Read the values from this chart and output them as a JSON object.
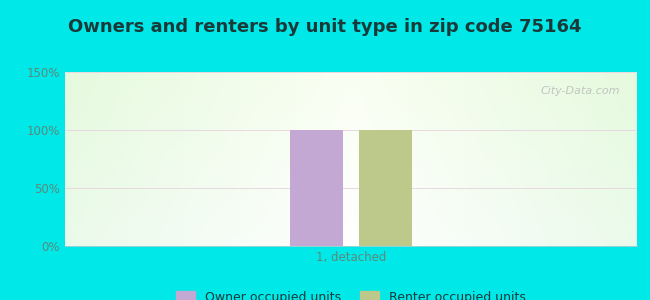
{
  "title": "Owners and renters by unit type in zip code 75164",
  "categories": [
    "1, detached"
  ],
  "owner_values": [
    100
  ],
  "renter_values": [
    100
  ],
  "owner_color": "#c4a8d4",
  "renter_color": "#bdc98a",
  "ylim": [
    0,
    150
  ],
  "yticks": [
    0,
    50,
    100,
    150
  ],
  "ytick_labels": [
    "0%",
    "50%",
    "100%",
    "150%"
  ],
  "xlabel": "1, detached",
  "legend_owner": "Owner occupied units",
  "legend_renter": "Renter occupied units",
  "background_outer": "#00e8e8",
  "watermark": "City-Data.com",
  "bar_width": 0.28,
  "title_fontsize": 13,
  "legend_fontsize": 9,
  "tick_color": "#5a8a7a"
}
